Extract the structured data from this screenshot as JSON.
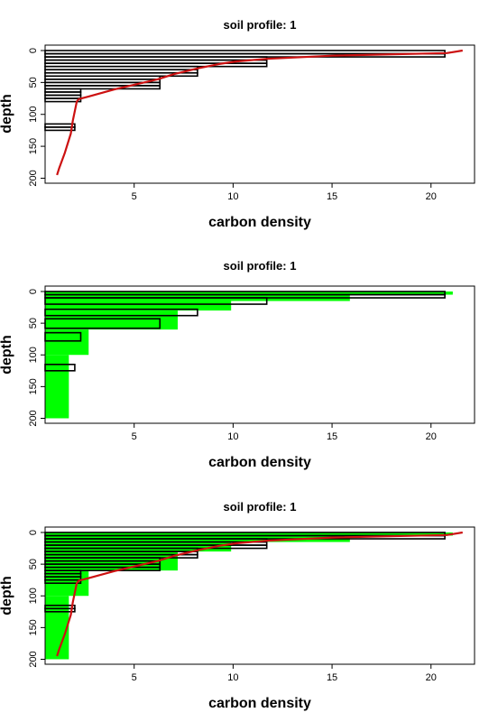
{
  "colors": {
    "background": "#ffffff",
    "axis": "#000000",
    "outline_bars": "#000000",
    "fill_bars": "#00ff00",
    "curve": "#cc1111"
  },
  "chart_data": [
    {
      "type": "bar",
      "orientation": "horizontal",
      "title": "soil profile: 1",
      "xlabel": "carbon density",
      "ylabel": "depth",
      "xlim": [
        0.5,
        22.2
      ],
      "ylim": [
        0,
        205
      ],
      "y_reversed": true,
      "xticks": [
        5,
        10,
        15,
        20
      ],
      "yticks": [
        0,
        50,
        100,
        150,
        200
      ],
      "outline_bars": [
        {
          "top": 0,
          "bottom": 5,
          "value": 20.7
        },
        {
          "top": 5,
          "bottom": 10,
          "value": 20.7
        },
        {
          "top": 10,
          "bottom": 15,
          "value": 11.7
        },
        {
          "top": 15,
          "bottom": 20,
          "value": 11.7
        },
        {
          "top": 20,
          "bottom": 25,
          "value": 11.7
        },
        {
          "top": 25,
          "bottom": 30,
          "value": 8.2
        },
        {
          "top": 30,
          "bottom": 35,
          "value": 8.2
        },
        {
          "top": 35,
          "bottom": 40,
          "value": 8.2
        },
        {
          "top": 40,
          "bottom": 45,
          "value": 6.3
        },
        {
          "top": 45,
          "bottom": 50,
          "value": 6.3
        },
        {
          "top": 50,
          "bottom": 55,
          "value": 6.3
        },
        {
          "top": 55,
          "bottom": 60,
          "value": 6.3
        },
        {
          "top": 60,
          "bottom": 65,
          "value": 2.3
        },
        {
          "top": 65,
          "bottom": 70,
          "value": 2.3
        },
        {
          "top": 70,
          "bottom": 75,
          "value": 2.3
        },
        {
          "top": 75,
          "bottom": 80,
          "value": 2.3
        },
        {
          "top": 115,
          "bottom": 120,
          "value": 2.0
        },
        {
          "top": 120,
          "bottom": 125,
          "value": 2.0
        }
      ],
      "fill_bars": [],
      "curve": {
        "x": [
          21.6,
          20.8,
          15.0,
          11.7,
          10.2,
          9.3,
          8.2,
          7.0,
          6.2,
          4.0,
          2.7,
          2.2,
          2.1,
          1.9,
          1.8,
          1.5,
          1.2,
          1.1
        ],
        "y": [
          0,
          4,
          8,
          13,
          17,
          21,
          28,
          37,
          45,
          61,
          72,
          76,
          80,
          110,
          130,
          160,
          185,
          195
        ]
      }
    },
    {
      "type": "bar",
      "orientation": "horizontal",
      "title": "soil profile: 1",
      "xlabel": "carbon density",
      "ylabel": "depth",
      "xlim": [
        0.5,
        22.2
      ],
      "ylim": [
        0,
        205
      ],
      "y_reversed": true,
      "xticks": [
        5,
        10,
        15,
        20
      ],
      "yticks": [
        0,
        50,
        100,
        150,
        200
      ],
      "outline_bars": [
        {
          "top": 0,
          "bottom": 5,
          "value": 20.7
        },
        {
          "top": 5,
          "bottom": 10,
          "value": 20.7
        },
        {
          "top": 10,
          "bottom": 20,
          "value": 11.7
        },
        {
          "top": 28,
          "bottom": 38,
          "value": 8.2
        },
        {
          "top": 43,
          "bottom": 58,
          "value": 6.3
        },
        {
          "top": 65,
          "bottom": 78,
          "value": 2.3
        },
        {
          "top": 115,
          "bottom": 125,
          "value": 2.0
        }
      ],
      "fill_bars": [
        {
          "top": 0,
          "bottom": 5,
          "value": 21.1
        },
        {
          "top": 5,
          "bottom": 15,
          "value": 15.9
        },
        {
          "top": 15,
          "bottom": 30,
          "value": 9.9
        },
        {
          "top": 30,
          "bottom": 60,
          "value": 7.2
        },
        {
          "top": 60,
          "bottom": 100,
          "value": 2.7
        },
        {
          "top": 100,
          "bottom": 200,
          "value": 1.7
        }
      ]
    },
    {
      "type": "bar",
      "orientation": "horizontal",
      "title": "soil profile: 1",
      "xlabel": "carbon density",
      "ylabel": "depth",
      "xlim": [
        0.5,
        22.2
      ],
      "ylim": [
        0,
        205
      ],
      "y_reversed": true,
      "xticks": [
        5,
        10,
        15,
        20
      ],
      "yticks": [
        0,
        50,
        100,
        150,
        200
      ],
      "outline_bars": [
        {
          "top": 0,
          "bottom": 5,
          "value": 20.7
        },
        {
          "top": 5,
          "bottom": 10,
          "value": 20.7
        },
        {
          "top": 10,
          "bottom": 15,
          "value": 11.7
        },
        {
          "top": 15,
          "bottom": 20,
          "value": 11.7
        },
        {
          "top": 20,
          "bottom": 25,
          "value": 11.7
        },
        {
          "top": 25,
          "bottom": 30,
          "value": 8.2
        },
        {
          "top": 30,
          "bottom": 35,
          "value": 8.2
        },
        {
          "top": 35,
          "bottom": 40,
          "value": 8.2
        },
        {
          "top": 40,
          "bottom": 45,
          "value": 6.3
        },
        {
          "top": 45,
          "bottom": 50,
          "value": 6.3
        },
        {
          "top": 50,
          "bottom": 55,
          "value": 6.3
        },
        {
          "top": 55,
          "bottom": 60,
          "value": 6.3
        },
        {
          "top": 60,
          "bottom": 65,
          "value": 2.3
        },
        {
          "top": 65,
          "bottom": 70,
          "value": 2.3
        },
        {
          "top": 70,
          "bottom": 75,
          "value": 2.3
        },
        {
          "top": 75,
          "bottom": 80,
          "value": 2.3
        },
        {
          "top": 115,
          "bottom": 120,
          "value": 2.0
        },
        {
          "top": 120,
          "bottom": 125,
          "value": 2.0
        }
      ],
      "fill_bars": [
        {
          "top": 0,
          "bottom": 5,
          "value": 21.1
        },
        {
          "top": 5,
          "bottom": 15,
          "value": 15.9
        },
        {
          "top": 15,
          "bottom": 30,
          "value": 9.9
        },
        {
          "top": 30,
          "bottom": 60,
          "value": 7.2
        },
        {
          "top": 60,
          "bottom": 100,
          "value": 2.7
        },
        {
          "top": 100,
          "bottom": 200,
          "value": 1.7
        }
      ],
      "curve": {
        "x": [
          21.6,
          20.8,
          15.0,
          11.7,
          10.2,
          9.3,
          8.2,
          7.0,
          6.2,
          4.0,
          2.7,
          2.2,
          2.1,
          1.9,
          1.8,
          1.5,
          1.2,
          1.1
        ],
        "y": [
          0,
          4,
          8,
          13,
          17,
          21,
          28,
          37,
          45,
          61,
          72,
          76,
          80,
          110,
          130,
          160,
          185,
          195
        ]
      }
    }
  ]
}
